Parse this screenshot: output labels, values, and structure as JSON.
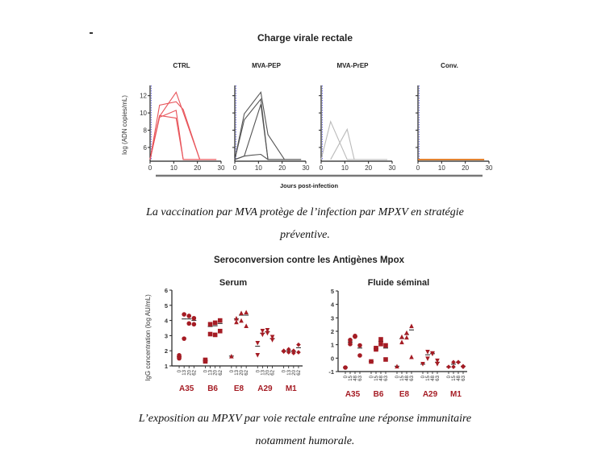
{
  "figure1": {
    "title": "Charge virale rectale",
    "caption_line1": "La vaccination par MVA protège de l’infection par MPXV en stratégie",
    "caption_line2": "préventive.",
    "chart_data": {
      "type": "line",
      "title": "Charge virale rectale",
      "xlabel": "Jours post-infection",
      "ylabel": "log (ADN copies/mL)",
      "xlim": [
        0,
        30
      ],
      "ylim": [
        4.5,
        13
      ],
      "xticks": [
        "0",
        "10",
        "20",
        "30"
      ],
      "yticks": [
        "6",
        "8",
        "10",
        "12"
      ],
      "panels": [
        {
          "name": "CTRL",
          "color": "#e8545a",
          "series": [
            {
              "x": [
                0,
                4,
                11,
                14,
                21,
                28
              ],
              "y": [
                4.6,
                10.9,
                11.3,
                10.4,
                4.6,
                4.6
              ]
            },
            {
              "x": [
                0,
                4,
                11,
                21,
                28
              ],
              "y": [
                4.6,
                9.6,
                12.4,
                4.6,
                4.6
              ]
            },
            {
              "x": [
                0,
                4,
                11,
                14,
                21
              ],
              "y": [
                4.6,
                9.5,
                10.3,
                4.6,
                4.6
              ]
            },
            {
              "x": [
                0,
                4,
                11,
                14,
                21
              ],
              "y": [
                4.6,
                9.7,
                9.4,
                4.6,
                4.6
              ]
            }
          ]
        },
        {
          "name": "MVA-PEP",
          "color": "#555555",
          "series": [
            {
              "x": [
                0,
                4,
                11,
                14,
                21,
                28
              ],
              "y": [
                4.6,
                9.9,
                12.4,
                7.5,
                4.6,
                4.6
              ]
            },
            {
              "x": [
                0,
                4,
                11,
                14,
                21
              ],
              "y": [
                4.6,
                9.2,
                11.6,
                4.6,
                4.6
              ]
            },
            {
              "x": [
                0,
                4,
                11,
                14
              ],
              "y": [
                4.6,
                5.0,
                11.0,
                4.6
              ]
            },
            {
              "x": [
                0,
                4,
                7,
                11,
                14,
                21,
                28
              ],
              "y": [
                4.6,
                5.0,
                5.1,
                5.2,
                4.6,
                4.6,
                4.6
              ]
            }
          ]
        },
        {
          "name": "MVA-PrEP",
          "color": "#bbbbbb",
          "series": [
            {
              "x": [
                0,
                4,
                11,
                14,
                21,
                28
              ],
              "y": [
                4.6,
                9.0,
                4.6,
                4.6,
                4.6,
                4.6
              ]
            },
            {
              "x": [
                4,
                11,
                14
              ],
              "y": [
                4.6,
                8.1,
                4.6
              ]
            }
          ]
        },
        {
          "name": "Conv.",
          "color": "#e07b24",
          "series": [
            {
              "x": [
                0,
                28
              ],
              "y": [
                4.6,
                4.6
              ]
            }
          ]
        }
      ]
    }
  },
  "figure2": {
    "title": "Seroconversion contre les Antigènes Mpox",
    "caption_line1": "L’exposition au MPXV par voie rectale entraîne une réponse immunitaire",
    "caption_line2": "notamment humorale.",
    "chart_data": [
      {
        "type": "scatter",
        "title": "Serum",
        "ylabel": "IgG concentration (log AU/mL)",
        "ylim": [
          1,
          6
        ],
        "yticks": [
          "1",
          "2",
          "3",
          "4",
          "5",
          "6"
        ],
        "timepoints": [
          "0",
          "13",
          "20",
          "62"
        ],
        "color": "#a51c24",
        "groups": [
          {
            "name": "A35",
            "marker": "circle",
            "points": [
              [
                1.5,
                1.7,
                1.6
              ],
              [
                4.4,
                2.8
              ],
              [
                4.3,
                3.8
              ],
              [
                4.15,
                3.75
              ]
            ],
            "means": [
              1.6,
              4.1,
              4.1,
              4.0
            ]
          },
          {
            "name": "B6",
            "marker": "square",
            "points": [
              [
                1.3,
                1.4
              ],
              [
                3.75,
                3.1
              ],
              [
                3.85,
                3.05
              ],
              [
                4.0,
                3.3
              ]
            ],
            "means": [
              1.35,
              3.6,
              3.65,
              3.8
            ]
          },
          {
            "name": "E8",
            "marker": "triangle",
            "points": [
              [
                1.65
              ],
              [
                4.15,
                3.9
              ],
              [
                4.5,
                4.0
              ],
              [
                4.55,
                3.65
              ]
            ],
            "means": [
              1.65,
              4.1,
              4.35,
              4.35
            ]
          },
          {
            "name": "A29",
            "marker": "triangle-down",
            "points": [
              [
                2.5,
                1.7
              ],
              [
                3.3,
                3.05
              ],
              [
                3.35,
                3.15
              ],
              [
                2.9,
                2.7
              ]
            ],
            "means": [
              2.3,
              3.15,
              3.25,
              2.8
            ]
          },
          {
            "name": "M1",
            "marker": "diamond",
            "points": [
              [
                2.0,
                1.95
              ],
              [
                2.1,
                1.9
              ],
              [
                2.0,
                1.85
              ],
              [
                2.4,
                1.9
              ]
            ],
            "means": [
              1.98,
              2.0,
              1.95,
              2.2
            ]
          }
        ]
      },
      {
        "type": "scatter",
        "title": "Fluide séminal",
        "ylabel": "",
        "ylim": [
          -1,
          5
        ],
        "yticks": [
          "-1",
          "0",
          "1",
          "2",
          "3",
          "4",
          "5"
        ],
        "timepoints": [
          "0",
          "15",
          "48",
          "63"
        ],
        "color": "#a51c24",
        "groups": [
          {
            "name": "A35",
            "marker": "circle",
            "points": [
              [
                -0.7
              ],
              [
                1.35,
                1.05
              ],
              [
                1.65,
                1.6
              ],
              [
                0.95,
                0.2
              ]
            ],
            "means": [
              -0.7,
              1.2,
              1.6,
              0.75
            ]
          },
          {
            "name": "B6",
            "marker": "square",
            "points": [
              [
                -0.25
              ],
              [
                0.75,
                0.65
              ],
              [
                1.4,
                1.05
              ],
              [
                0.95,
                -0.1
              ]
            ],
            "means": [
              -0.25,
              0.7,
              1.25,
              0.75
            ]
          },
          {
            "name": "E8",
            "marker": "triangle",
            "points": [
              [
                -0.6
              ],
              [
                1.6,
                1.2
              ],
              [
                1.9,
                1.55
              ],
              [
                2.4,
                0.1
              ]
            ],
            "means": [
              -0.6,
              1.45,
              1.75,
              2.1
            ]
          },
          {
            "name": "A29",
            "marker": "triangle-down",
            "points": [
              [
                -0.45
              ],
              [
                0.45,
                -0.05
              ],
              [
                0.35,
                0.3
              ],
              [
                -0.2,
                -0.45
              ]
            ],
            "means": [
              -0.45,
              0.25,
              0.33,
              -0.3
            ]
          },
          {
            "name": "M1",
            "marker": "diamond",
            "points": [
              [
                -0.65
              ],
              [
                -0.3,
                -0.65
              ],
              [
                -0.3,
                -0.3
              ],
              [
                -0.6,
                -0.65
              ]
            ],
            "means": [
              -0.65,
              -0.45,
              -0.3,
              -0.6
            ]
          }
        ]
      }
    ]
  }
}
